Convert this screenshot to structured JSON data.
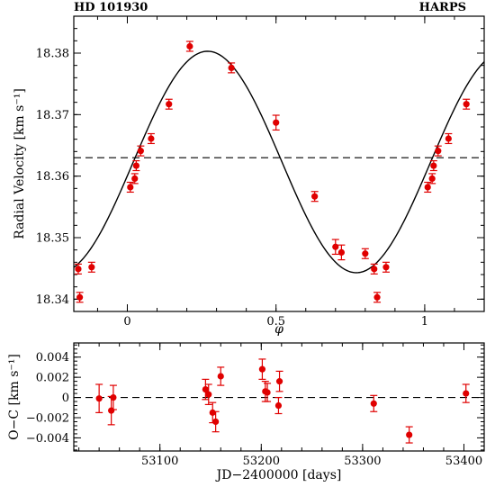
{
  "figure": {
    "target_label": "HD 101930",
    "instrument_label": "HARPS"
  },
  "chart_data": [
    {
      "type": "scatter",
      "title": "",
      "xlabel": "φ",
      "ylabel": "Radial Velocity [km s⁻¹]",
      "xlim": [
        -0.18,
        1.2
      ],
      "ylim": [
        18.338,
        18.386
      ],
      "x_ticks": [
        0,
        0.5,
        1
      ],
      "x_tick_labels": [
        "0",
        "0.5",
        "1"
      ],
      "y_ticks": [
        18.34,
        18.35,
        18.36,
        18.37,
        18.38
      ],
      "y_tick_labels": [
        "18.34",
        "18.35",
        "18.36",
        "18.37",
        "18.38"
      ],
      "grid": false,
      "reference_line": {
        "y": 18.363,
        "style": "dashed"
      },
      "model_curve": {
        "gamma": 18.3623,
        "K": 0.018,
        "phase_of_max": 0.27
      },
      "series": [
        {
          "color": "#e00000",
          "x": [
            -0.165,
            -0.16,
            -0.12,
            0.01,
            0.025,
            0.03,
            0.045,
            0.08,
            0.14,
            0.21,
            0.35,
            0.5,
            0.63,
            0.7,
            0.72,
            0.8,
            0.83,
            0.84,
            0.87,
            1.01,
            1.025,
            1.03,
            1.045,
            1.08,
            1.14
          ],
          "y": [
            18.3449,
            18.3403,
            18.3452,
            18.3582,
            18.3596,
            18.3617,
            18.3641,
            18.3661,
            18.3717,
            18.3811,
            18.3776,
            18.3687,
            18.3567,
            18.3485,
            18.3476,
            18.3474,
            18.3449,
            18.3403,
            18.3452,
            18.3582,
            18.3596,
            18.3617,
            18.3641,
            18.3661,
            18.3717
          ],
          "yerr": [
            0.0008,
            0.0008,
            0.0008,
            0.0008,
            0.0008,
            0.0008,
            0.0008,
            0.0008,
            0.0008,
            0.0008,
            0.0008,
            0.0012,
            0.0008,
            0.0012,
            0.0012,
            0.0008,
            0.0008,
            0.0008,
            0.0008,
            0.0008,
            0.0008,
            0.0008,
            0.0008,
            0.0008,
            0.0008
          ]
        }
      ]
    },
    {
      "type": "scatter",
      "title": "",
      "xlabel": "JD−2400000 [days]",
      "ylabel": "O−C [km s⁻¹]",
      "xlim": [
        53015,
        53420
      ],
      "ylim": [
        -0.0053,
        0.0054
      ],
      "x_ticks": [
        53100,
        53200,
        53300,
        53400
      ],
      "x_tick_labels": [
        "53100",
        "53200",
        "53300",
        "53400"
      ],
      "y_ticks": [
        -0.004,
        -0.002,
        0,
        0.002,
        0.004
      ],
      "y_tick_labels": [
        "−0.004",
        "−0.002",
        "0",
        "0.002",
        "0.004"
      ],
      "grid": false,
      "reference_line": {
        "y": 0,
        "style": "dashed"
      },
      "series": [
        {
          "color": "#e00000",
          "x": [
            53040,
            53052,
            53054,
            53145,
            53148,
            53152,
            53155,
            53160,
            53201,
            53204,
            53206,
            53217,
            53218,
            53311,
            53346,
            53402
          ],
          "y": [
            -0.0001,
            -0.0013,
            0.0,
            0.0008,
            0.0003,
            -0.0015,
            -0.0024,
            0.0021,
            0.0028,
            0.0006,
            0.0005,
            -0.0008,
            0.0016,
            -0.0006,
            -0.0037,
            0.0004
          ],
          "yerr": [
            0.0014,
            0.0014,
            0.0012,
            0.001,
            0.001,
            0.001,
            0.001,
            0.0009,
            0.001,
            0.001,
            0.0009,
            0.0008,
            0.001,
            0.0008,
            0.0008,
            0.0009
          ]
        }
      ]
    }
  ]
}
